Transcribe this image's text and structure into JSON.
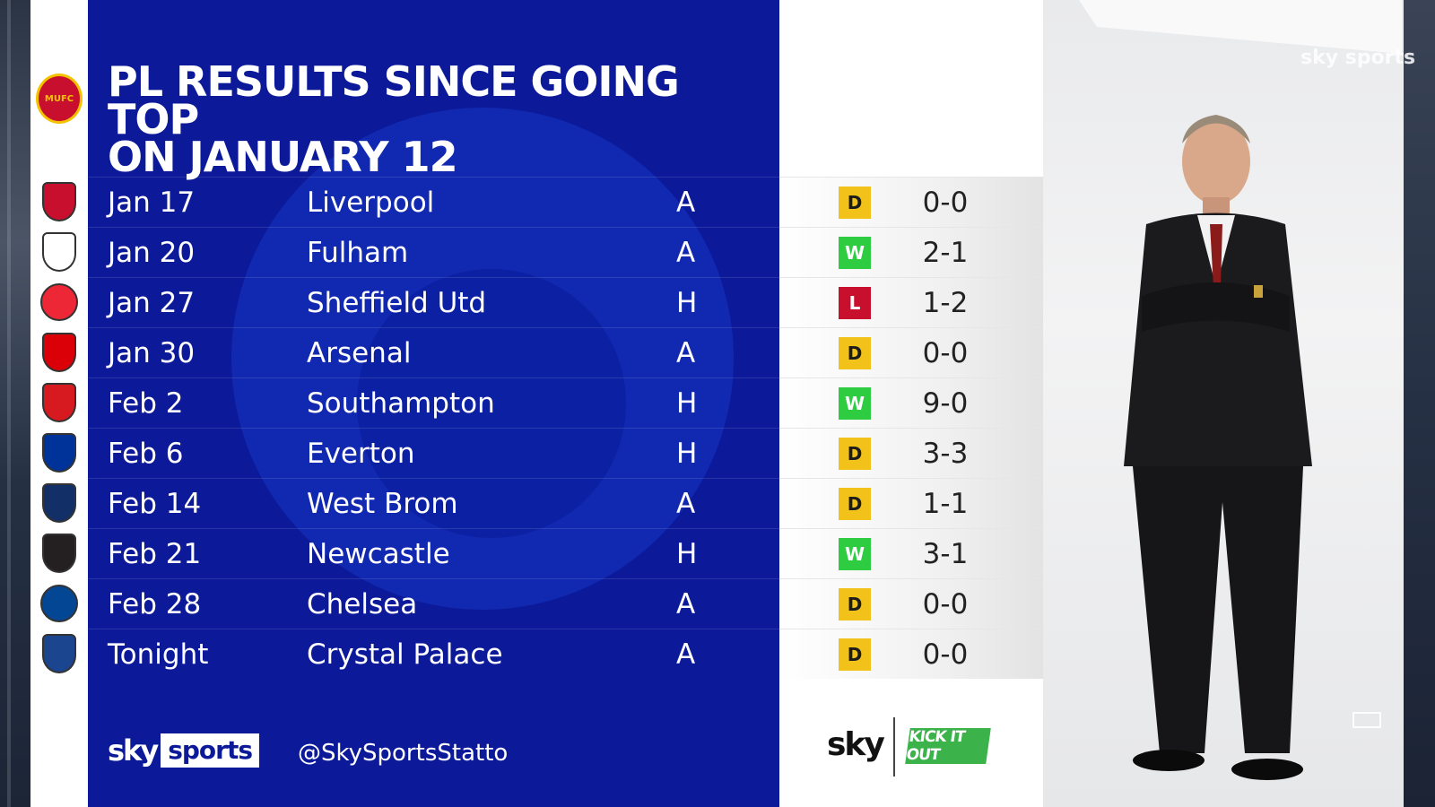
{
  "title_line1": "PL RESULTS SINCE GOING TOP",
  "title_line2": "ON JANUARY 12",
  "colors": {
    "panel_blue": "#0c1a9a",
    "draw": "#f2c21b",
    "win": "#2ecc40",
    "loss": "#c8102e"
  },
  "results": [
    {
      "date": "Jan 17",
      "opponent": "Liverpool",
      "venue": "A",
      "result": "D",
      "score": "0-0",
      "crest": "liverpool-crest"
    },
    {
      "date": "Jan 20",
      "opponent": "Fulham",
      "venue": "A",
      "result": "W",
      "score": "2-1",
      "crest": "fulham-crest"
    },
    {
      "date": "Jan 27",
      "opponent": "Sheffield Utd",
      "venue": "H",
      "result": "L",
      "score": "1-2",
      "crest": "sheffield-utd-crest"
    },
    {
      "date": "Jan 30",
      "opponent": "Arsenal",
      "venue": "A",
      "result": "D",
      "score": "0-0",
      "crest": "arsenal-crest"
    },
    {
      "date": "Feb 2",
      "opponent": "Southampton",
      "venue": "H",
      "result": "W",
      "score": "9-0",
      "crest": "southampton-crest"
    },
    {
      "date": "Feb 6",
      "opponent": "Everton",
      "venue": "H",
      "result": "D",
      "score": "3-3",
      "crest": "everton-crest"
    },
    {
      "date": "Feb 14",
      "opponent": "West Brom",
      "venue": "A",
      "result": "D",
      "score": "1-1",
      "crest": "west-brom-crest"
    },
    {
      "date": "Feb 21",
      "opponent": "Newcastle",
      "venue": "H",
      "result": "W",
      "score": "3-1",
      "crest": "newcastle-crest"
    },
    {
      "date": "Feb 28",
      "opponent": "Chelsea",
      "venue": "A",
      "result": "D",
      "score": "0-0",
      "crest": "chelsea-crest"
    },
    {
      "date": "Tonight",
      "opponent": "Crystal Palace",
      "venue": "A",
      "result": "D",
      "score": "0-0",
      "crest": "crystal-palace-crest"
    }
  ],
  "footer": {
    "brand_sky": "sky",
    "brand_sports": "sports",
    "handle": "@SkySportsStatto",
    "sky_logo": "sky",
    "kick_it_out": "KICK IT OUT"
  },
  "watermark": "sky sports"
}
